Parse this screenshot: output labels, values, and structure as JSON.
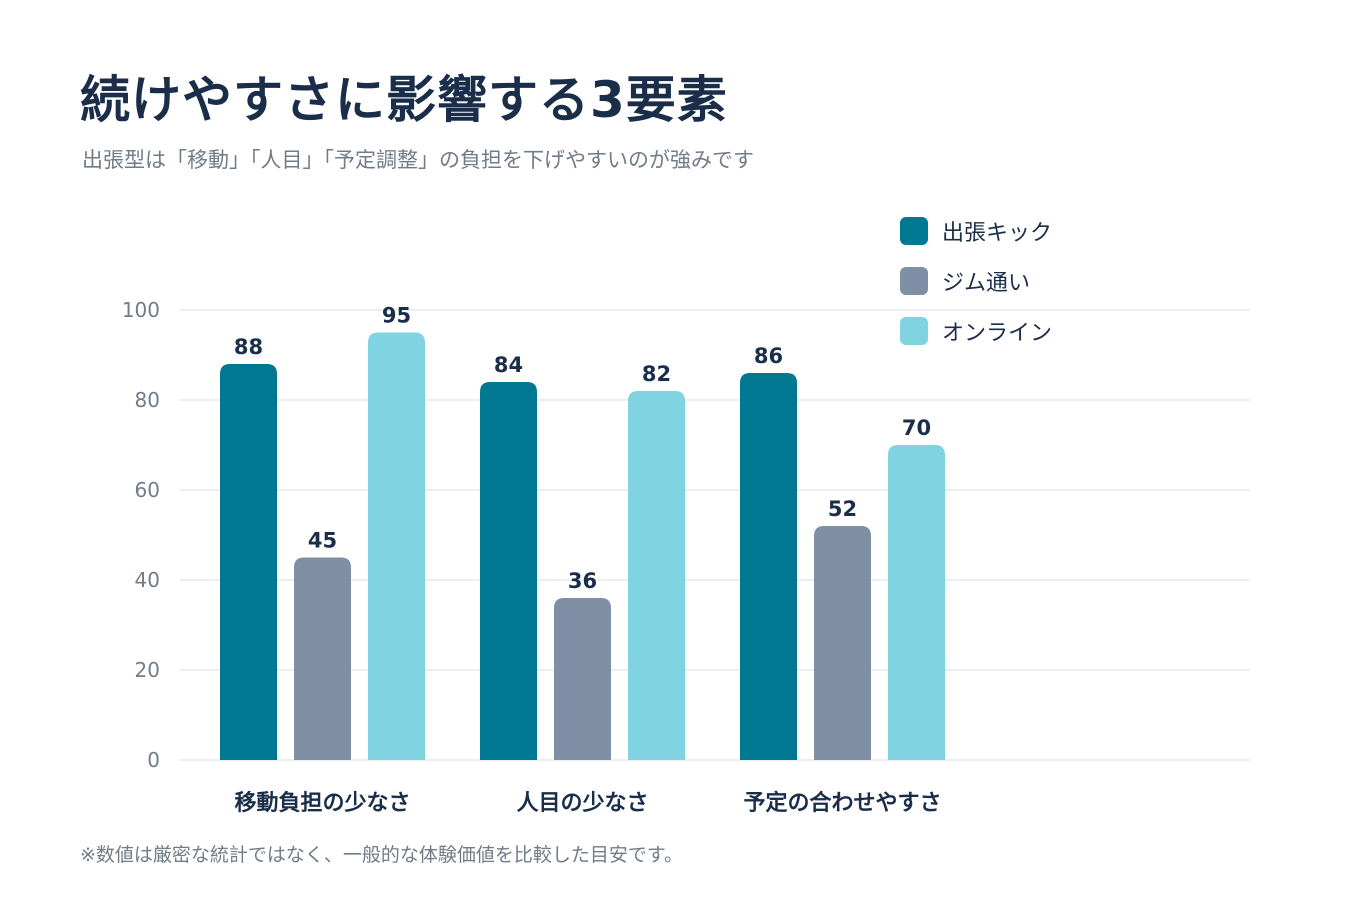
{
  "title": "続けやすさに影響する3要素",
  "subtitle": "出張型は「移動」「人目」「予定調整」の負担を下げやすいのが強みです",
  "footnote": "※数値は厳密な統計ではなく、一般的な体験価値を比較した目安です。",
  "colors": {
    "series_1": "#007891",
    "series_2": "#7f8fa6",
    "series_3": "#80d3e0",
    "grid": "#e6eaee",
    "axis_text": "#707c88",
    "value_text": "#1a2e4a"
  },
  "chart_data": {
    "type": "bar",
    "categories": [
      "移動負担の少なさ",
      "人目の少なさ",
      "予定の合わせやすさ"
    ],
    "series": [
      {
        "name": "出張キック",
        "values": [
          88,
          84,
          86
        ]
      },
      {
        "name": "ジム通い",
        "values": [
          45,
          36,
          52
        ]
      },
      {
        "name": "オンライン",
        "values": [
          95,
          82,
          70
        ]
      }
    ],
    "ylim": [
      0,
      100
    ],
    "yticks": [
      "0",
      "20",
      "40",
      "60",
      "80",
      "100"
    ],
    "grid": true,
    "legend_position": "top-right",
    "data_labels": true
  }
}
